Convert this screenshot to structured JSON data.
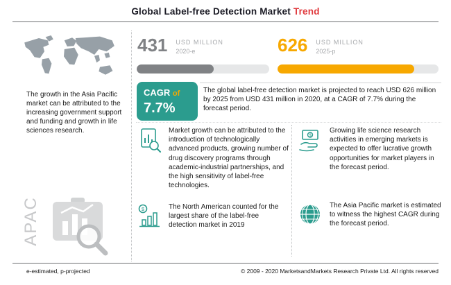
{
  "title": {
    "main": "Global Label-free Detection Market",
    "highlight": "Trend"
  },
  "left_panel": {
    "caption": "The growth in the Asia Pacific market can be attributed to the increasing government support and funding and growth in life sciences research.",
    "region_label": "APAC"
  },
  "stats": {
    "current": {
      "value": "431",
      "unit": "USD MILLION",
      "year": "2020-e",
      "progress_pct": 58,
      "color": "#808285"
    },
    "projected": {
      "value": "626",
      "unit": "USD MILLION",
      "year": "2025-p",
      "progress_pct": 85,
      "color": "#f7a800"
    }
  },
  "cagr": {
    "label": "CAGR",
    "connector": "of",
    "value": "7.7%"
  },
  "summary": "The global label-free detection market is projected to reach USD 626 million by 2025 from USD 431 million in 2020, at a CAGR of 7.7% during the forecast period.",
  "bullets": [
    {
      "icon": "clipboard-chart-icon",
      "text": "Market growth can be attributed to the introduction of technologically advanced products, growing number of drug discovery programs through academic-industrial partnerships, and the high sensitivity of label-free technologies."
    },
    {
      "icon": "money-hand-icon",
      "text": "Growing life science research activities in emerging markets is expected to offer lucrative growth opportunities for market players in the forecast period."
    },
    {
      "icon": "bar-chart-coin-icon",
      "text": "The North American counted for the largest share of the label-free detection market in 2019"
    },
    {
      "icon": "globe-icon",
      "text": "The Asia Pacific market is estimated to witness the highest CAGR during the forecast period."
    }
  ],
  "footer": {
    "note": "e-estimated, p-projected",
    "copyright": "© 2009 - 2020 MarketsandMarkets Research Private Ltd. All rights reserved"
  },
  "colors": {
    "teal": "#2b9c8e",
    "orange": "#f7a800",
    "gray": "#808285",
    "red": "#e03a3e"
  },
  "chart_data": {
    "type": "bar",
    "title": "Global Label-free Detection Market Trend",
    "categories": [
      "2020-e",
      "2025-p"
    ],
    "values": [
      431,
      626
    ],
    "unit": "USD MILLION",
    "cagr": "7.7%",
    "annotations": [
      "e-estimated, p-projected"
    ]
  }
}
